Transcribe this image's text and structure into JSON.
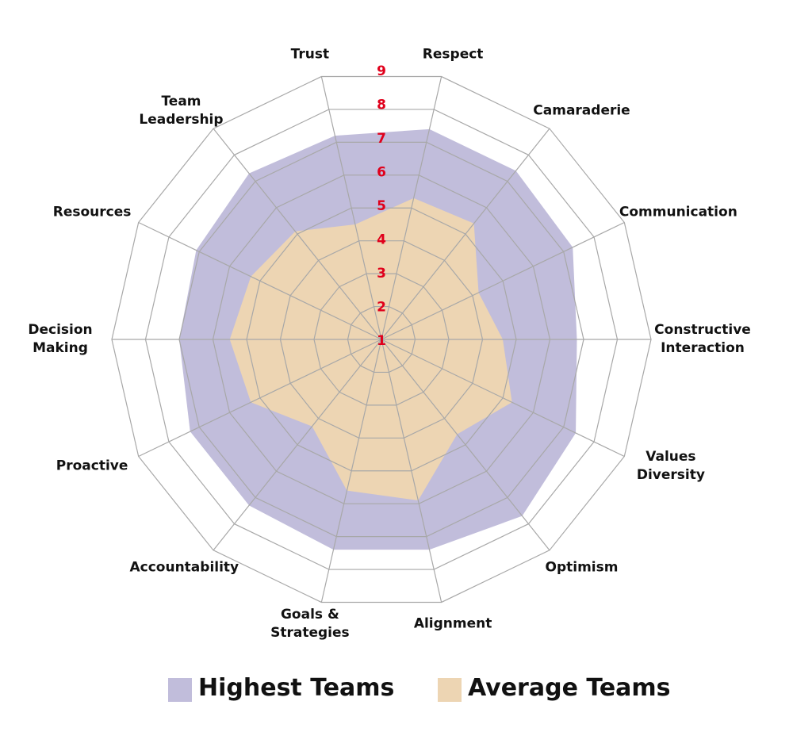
{
  "chart_data": {
    "type": "radar",
    "categories": [
      "Trust",
      "Respect",
      "Camaraderie",
      "Communication",
      "Constructive Interaction",
      "Values Diversity",
      "Optimism",
      "Alignment",
      "Goals & Strategies",
      "Accountability",
      "Proactive",
      "Decision Making",
      "Resources",
      "Team Leadership"
    ],
    "series": [
      {
        "name": "Highest Teams",
        "color": "#c1bddb",
        "values": [
          7.2,
          7.4,
          7.4,
          7.3,
          6.8,
          7.4,
          7.7,
          7.4,
          7.4,
          7.3,
          7.3,
          7.0,
          7.1,
          7.3
        ]
      },
      {
        "name": "Average Teams",
        "color": "#edd5b3",
        "values": [
          4.5,
          5.3,
          5.4,
          4.2,
          4.6,
          5.3,
          4.6,
          5.9,
          5.6,
          4.3,
          5.3,
          5.5,
          5.3,
          5.1
        ]
      }
    ],
    "rlim": [
      1,
      9
    ],
    "rticks": [
      1,
      2,
      3,
      4,
      5,
      6,
      7,
      8,
      9
    ],
    "tick_color": "#e0001b",
    "grid": true
  }
}
